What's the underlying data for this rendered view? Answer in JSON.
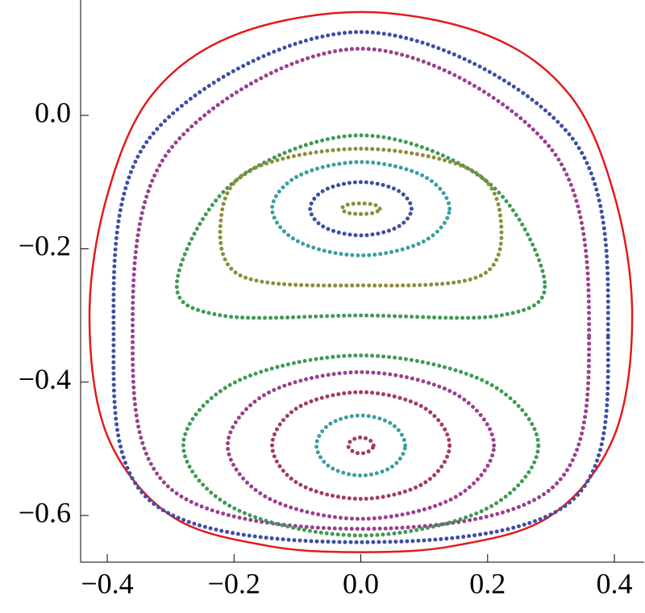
{
  "chart_data": {
    "type": "scatter",
    "xlim": [
      -0.442,
      0.447
    ],
    "ylim": [
      -0.67,
      0.173
    ],
    "xticks": [
      {
        "value": -0.4,
        "label": "−0.4"
      },
      {
        "value": -0.2,
        "label": "−0.2"
      },
      {
        "value": 0.0,
        "label": "0.0"
      },
      0.2,
      0.4
    ],
    "yticks": [
      {
        "value": -0.6,
        "label": "−0.6"
      },
      {
        "value": -0.4,
        "label": "−0.4"
      },
      {
        "value": -0.2,
        "label": "−0.2"
      },
      {
        "value": 0.0,
        "label": "0.0"
      }
    ],
    "series": [
      {
        "color": "#e31a1c",
        "mode": "line",
        "x": [
          0,
          0.2,
          0.33,
          0.4,
          0.428,
          0.4,
          0.3,
          0.15,
          0,
          -0.15,
          -0.3,
          -0.4,
          -0.428,
          -0.4,
          -0.33,
          -0.2
        ],
        "y": [
          0.155,
          0.12,
          0.03,
          -0.12,
          -0.3,
          -0.48,
          -0.6,
          -0.645,
          -0.655,
          -0.645,
          -0.6,
          -0.48,
          -0.3,
          -0.12,
          0.03,
          0.12
        ]
      },
      {
        "color": "#3d4fa3",
        "mode": "dots",
        "x": [
          0.39,
          0.33,
          0,
          -0.33,
          -0.39,
          -0.33,
          0,
          0.33
        ],
        "y": [
          -0.33,
          -0.03,
          0.125,
          -0.03,
          -0.33,
          -0.58,
          -0.64,
          -0.58
        ]
      },
      {
        "color": "#9b3f8e",
        "mode": "dots",
        "x": [
          0.36,
          0.3,
          0,
          -0.3,
          -0.36,
          -0.3,
          0,
          0.3
        ],
        "y": [
          -0.33,
          -0.05,
          0.1,
          -0.05,
          -0.33,
          -0.56,
          -0.62,
          -0.56
        ]
      },
      {
        "color": "#3f9b52",
        "mode": "dots",
        "x": [
          0.29,
          0.2,
          0,
          -0.2,
          -0.29,
          -0.22,
          0,
          0.22
        ],
        "y": [
          -0.25,
          -0.1,
          -0.03,
          -0.1,
          -0.25,
          -0.3,
          -0.3,
          -0.3
        ]
      },
      {
        "color": "#8e8c3d",
        "mode": "dots",
        "x": [
          0.22,
          0.17,
          0,
          -0.17,
          -0.22,
          -0.19,
          0,
          0.19
        ],
        "y": [
          -0.15,
          -0.08,
          -0.05,
          -0.08,
          -0.15,
          -0.24,
          -0.255,
          -0.24
        ]
      },
      {
        "color": "#3d9ea0",
        "mode": "dots",
        "x": [
          0.14,
          0.099,
          0,
          -0.099,
          -0.14,
          -0.099,
          0,
          0.099
        ],
        "y": [
          -0.14,
          -0.091,
          -0.07,
          -0.091,
          -0.14,
          -0.189,
          -0.21,
          -0.189
        ]
      },
      {
        "color": "#3d4fa3",
        "mode": "dots",
        "x": [
          0.08,
          0.057,
          0,
          -0.057,
          -0.08,
          -0.057,
          0,
          0.057
        ],
        "y": [
          -0.14,
          -0.112,
          -0.1,
          -0.112,
          -0.14,
          -0.168,
          -0.18,
          -0.168
        ]
      },
      {
        "color": "#8e8c3d",
        "mode": "dots",
        "x": [
          0.03,
          0.021,
          0,
          -0.021,
          -0.03,
          -0.021,
          0,
          0.021
        ],
        "y": [
          -0.14,
          -0.134,
          -0.132,
          -0.134,
          -0.14,
          -0.146,
          -0.148,
          -0.146
        ]
      },
      {
        "color": "#3f9b52",
        "mode": "dots",
        "x": [
          0.28,
          0.198,
          0,
          -0.198,
          -0.28,
          -0.198,
          0,
          0.198
        ],
        "y": [
          -0.495,
          -0.4,
          -0.36,
          -0.4,
          -0.495,
          -0.59,
          -0.63,
          -0.59
        ]
      },
      {
        "color": "#9b3f8e",
        "mode": "dots",
        "x": [
          0.21,
          0.148,
          0,
          -0.148,
          -0.21,
          -0.148,
          0,
          0.148
        ],
        "y": [
          -0.495,
          -0.417,
          -0.385,
          -0.417,
          -0.495,
          -0.573,
          -0.605,
          -0.573
        ]
      },
      {
        "color": "#a33d55",
        "mode": "dots",
        "x": [
          0.14,
          0.099,
          0,
          -0.099,
          -0.14,
          -0.099,
          0,
          0.099
        ],
        "y": [
          -0.495,
          -0.438,
          -0.415,
          -0.438,
          -0.495,
          -0.552,
          -0.575,
          -0.552
        ]
      },
      {
        "color": "#3d9ea0",
        "mode": "dots",
        "x": [
          0.07,
          0.049,
          0,
          -0.049,
          -0.07,
          -0.049,
          0,
          0.049
        ],
        "y": [
          -0.495,
          -0.463,
          -0.45,
          -0.463,
          -0.495,
          -0.527,
          -0.54,
          -0.527
        ]
      },
      {
        "color": "#a33d55",
        "mode": "dots",
        "x": [
          0.02,
          0.014,
          0,
          -0.014,
          -0.02,
          -0.014,
          0,
          0.014
        ],
        "y": [
          -0.495,
          -0.487,
          -0.483,
          -0.487,
          -0.495,
          -0.503,
          -0.507,
          -0.503
        ]
      }
    ]
  }
}
